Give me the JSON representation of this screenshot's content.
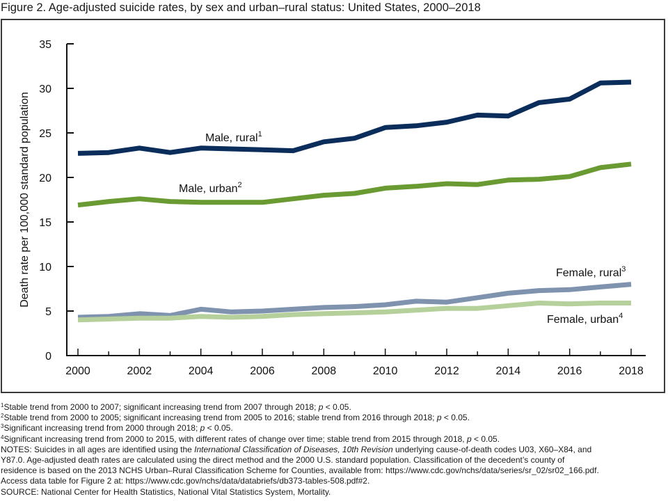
{
  "figure": {
    "title": "Figure 2. Age-adjusted suicide rates, by sex and urban–rural status: United States, 2000–2018"
  },
  "chart_data": {
    "type": "line",
    "title": "Figure 2. Age-adjusted suicide rates, by sex and urban–rural status: United States, 2000–2018",
    "xlabel": "",
    "ylabel": "Death rate per 100,000 standard population",
    "x": [
      2000,
      2001,
      2002,
      2003,
      2004,
      2005,
      2006,
      2007,
      2008,
      2009,
      2010,
      2011,
      2012,
      2013,
      2014,
      2015,
      2016,
      2017,
      2018
    ],
    "xticks": [
      "2000",
      "2002",
      "2004",
      "2006",
      "2008",
      "2010",
      "2012",
      "2014",
      "2016",
      "2018"
    ],
    "xlim": [
      2000,
      2018
    ],
    "yticks": [
      "0",
      "5",
      "10",
      "15",
      "20",
      "25",
      "30",
      "35"
    ],
    "ylim": [
      0,
      35
    ],
    "grid": false,
    "legend": "inline labels",
    "series": [
      {
        "name": "Male, rural",
        "footnote": "1",
        "color": "#0b2d5b",
        "values": [
          22.7,
          22.8,
          23.3,
          22.8,
          23.3,
          23.2,
          23.1,
          23.0,
          24.0,
          24.4,
          25.6,
          25.8,
          26.2,
          27.0,
          26.9,
          28.4,
          28.8,
          30.6,
          30.7
        ]
      },
      {
        "name": "Male, urban",
        "footnote": "2",
        "color": "#6a9a32",
        "values": [
          16.9,
          17.3,
          17.6,
          17.3,
          17.2,
          17.2,
          17.2,
          17.6,
          18.0,
          18.2,
          18.8,
          19.0,
          19.3,
          19.2,
          19.7,
          19.8,
          20.1,
          21.1,
          21.5
        ]
      },
      {
        "name": "Female, rural",
        "footnote": "3",
        "color": "#7f92ae",
        "values": [
          4.3,
          4.4,
          4.7,
          4.5,
          5.2,
          4.9,
          5.0,
          5.2,
          5.4,
          5.5,
          5.7,
          6.1,
          6.0,
          6.5,
          7.0,
          7.3,
          7.4,
          7.7,
          8.0
        ]
      },
      {
        "name": "Female, urban",
        "footnote": "4",
        "color": "#b5d09a",
        "values": [
          4.0,
          4.1,
          4.2,
          4.2,
          4.4,
          4.3,
          4.4,
          4.6,
          4.7,
          4.8,
          4.9,
          5.1,
          5.3,
          5.3,
          5.6,
          5.9,
          5.8,
          5.9,
          5.9
        ]
      }
    ]
  },
  "notes": {
    "fn1": {
      "mark": "1",
      "text": "Stable trend from 2000 to 2007; significant increasing trend from 2007 through 2018; ",
      "p": "p",
      "tail": " < 0.05."
    },
    "fn2": {
      "mark": "2",
      "text": "Stable trend from 2000 to 2005; significant increasing trend from 2005 to 2016; stable trend from 2016 through 2018; ",
      "p": "p",
      "tail": " < 0.05."
    },
    "fn3": {
      "mark": "3",
      "text": "Significant increasing trend from 2000 through 2018; ",
      "p": "p",
      "tail": " < 0.05."
    },
    "fn4": {
      "mark": "4",
      "text": "Significant increasing trend from 2000 to 2015, with different rates of change over time; stable trend from 2015 through 2018, ",
      "p": "p",
      "tail": " < 0.05."
    },
    "notes_a": "NOTES: Suicides in all ages are identified using the ",
    "notes_icd": "International Classification of Diseases, 10th Revision",
    "notes_b": " underlying cause-of-death codes U03, X60–X84, and",
    "notes_line2": "Y87.0. Age-adjusted death rates are calculated using the direct method and the 2000 U.S. standard population. Classification of the decedent’s county of",
    "notes_line3": "residence is based on the 2013 NCHS Urban–Rural Classification Scheme for Counties, available from: https://www.cdc.gov/nchs/data/series/sr_02/sr02_166.pdf.",
    "access": "Access data table for Figure 2 at: https://www.cdc.gov/nchs/data/databriefs/db373-tables-508.pdf#2.",
    "source": "SOURCE: National Center for Health Statistics, National Vital Statistics System, Mortality."
  }
}
